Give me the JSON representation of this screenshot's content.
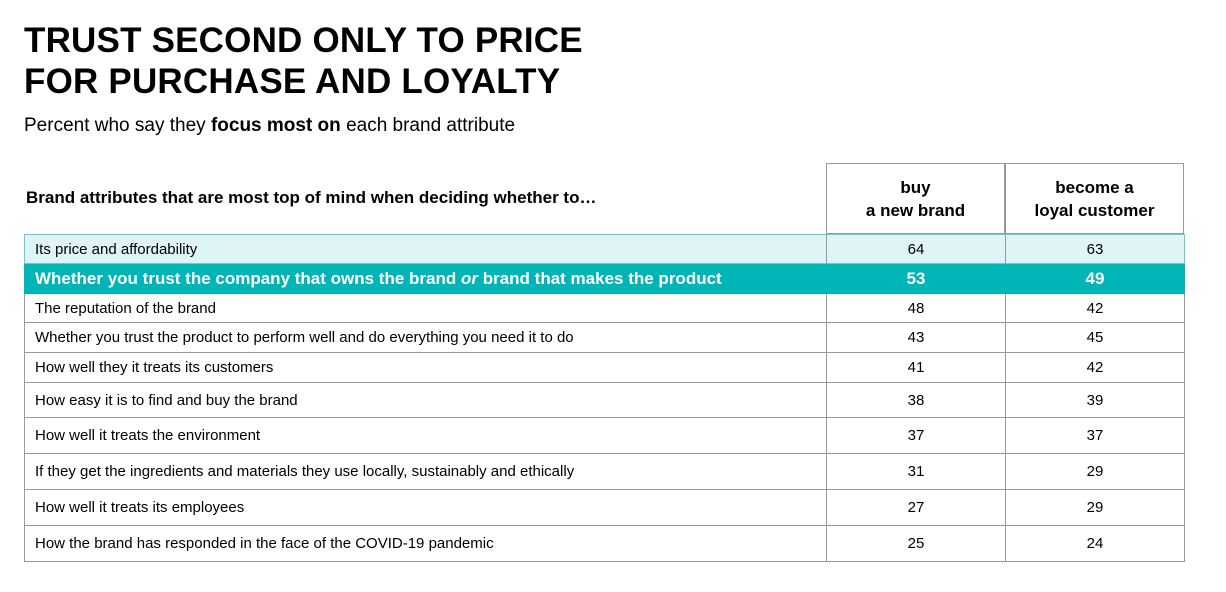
{
  "header": {
    "title_lines": [
      "TRUST SECOND ONLY TO PRICE",
      "FOR PURCHASE AND LOYALTY"
    ],
    "subtitle": {
      "before": "Percent who say they",
      "bold": "focus most on",
      "after": "each brand attribute"
    }
  },
  "table": {
    "row_header": "Brand attributes that are most top of mind when deciding whether to…",
    "columns": [
      [
        "buy",
        "a new brand"
      ],
      [
        "become a",
        "loyal customer"
      ]
    ],
    "rows": [
      {
        "label": "Its price and affordability",
        "values": [
          64,
          63
        ]
      },
      {
        "label_parts": [
          "Whether you trust the company that owns the brand",
          "or",
          "brand that makes the product"
        ],
        "values": [
          53,
          49
        ]
      },
      {
        "label": "The reputation of the brand",
        "values": [
          48,
          42
        ]
      },
      {
        "label": "Whether you trust the product to perform well and do everything you need it to do",
        "values": [
          43,
          45
        ]
      },
      {
        "label": "How well they it treats its customers",
        "values": [
          41,
          42
        ]
      },
      {
        "label": "How easy it is to find and buy the brand",
        "values": [
          38,
          39
        ]
      },
      {
        "label": "How well it treats the environment",
        "values": [
          37,
          37
        ]
      },
      {
        "label": "If they get the ingredients and materials they use locally, sustainably and ethically",
        "values": [
          31,
          29
        ]
      },
      {
        "label": "How well it treats its employees",
        "values": [
          27,
          29
        ]
      },
      {
        "label": "How the brand has responded in the face of the COVID-19 pandemic",
        "values": [
          25,
          24
        ]
      }
    ]
  }
}
